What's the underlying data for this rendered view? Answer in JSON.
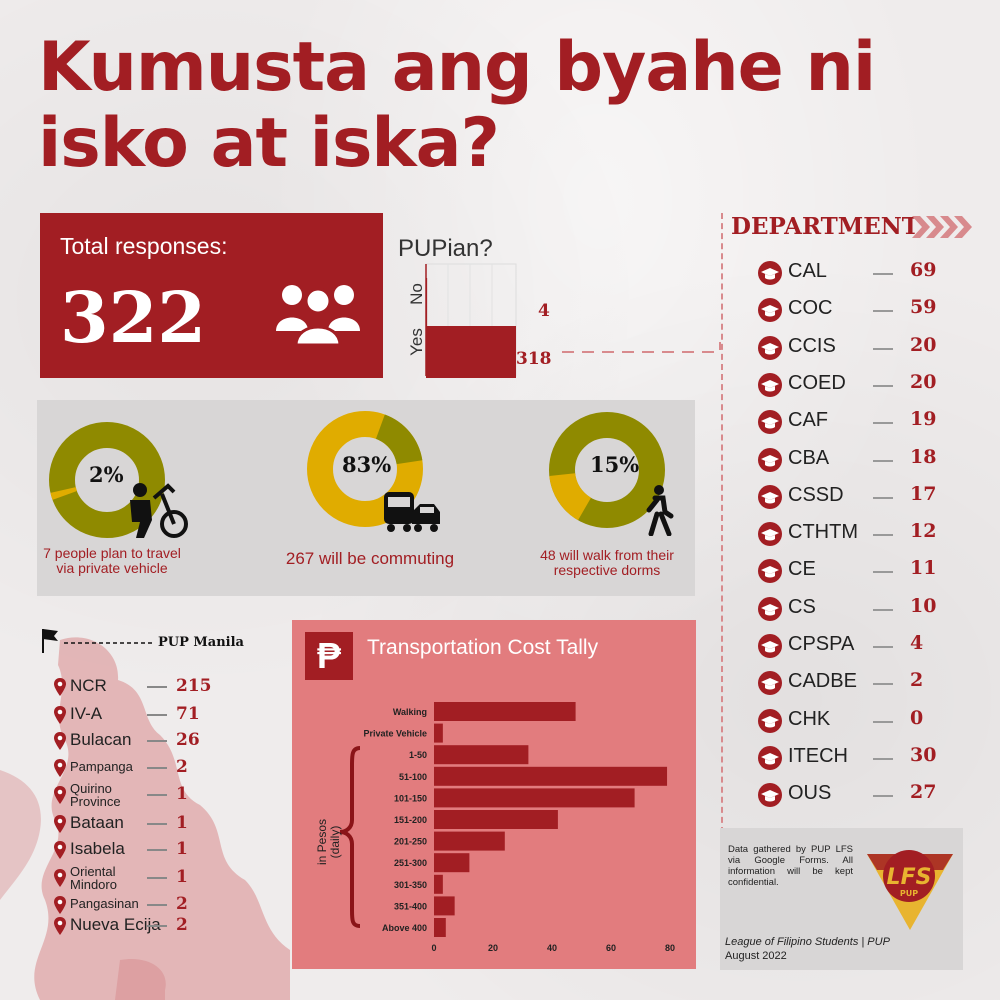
{
  "title_line1": "Kumusta ang byahe ni",
  "title_line2": "isko at iska?",
  "total": {
    "label": "Total responses:",
    "value": "322",
    "icon": "people-group-icon"
  },
  "pupian": {
    "title": "PUPian?",
    "chart_data": {
      "type": "bar",
      "orientation": "horizontal",
      "categories": [
        "No",
        "Yes"
      ],
      "values": [
        4,
        318
      ],
      "value_labels": [
        "4",
        "318"
      ]
    }
  },
  "modes": [
    {
      "pct_label": "2%",
      "pct": 2,
      "caption": "7 people plan to travel via private vehicle",
      "icon": "person-bicycle-icon"
    },
    {
      "pct_label": "83%",
      "pct": 83,
      "caption": "267 will be commuting",
      "icon": "bus-car-icon"
    },
    {
      "pct_label": "15%",
      "pct": 15,
      "caption": "48 will walk from their respective dorms",
      "icon": "walking-person-icon"
    }
  ],
  "department": {
    "header": "DEPARTMENT",
    "items": [
      {
        "name": "CAL",
        "count": "69"
      },
      {
        "name": "COC",
        "count": "59"
      },
      {
        "name": "CCIS",
        "count": "20"
      },
      {
        "name": "COED",
        "count": "20"
      },
      {
        "name": "CAF",
        "count": "19"
      },
      {
        "name": "CBA",
        "count": "18"
      },
      {
        "name": "CSSD",
        "count": "17"
      },
      {
        "name": "CTHTM",
        "count": "12"
      },
      {
        "name": "CE",
        "count": "11"
      },
      {
        "name": "CS",
        "count": "10"
      },
      {
        "name": "CPSPA",
        "count": "4"
      },
      {
        "name": "CADBE",
        "count": "2"
      },
      {
        "name": "CHK",
        "count": "0"
      },
      {
        "name": "ITECH",
        "count": "30"
      },
      {
        "name": "OUS",
        "count": "27"
      }
    ]
  },
  "regions": {
    "marker": "PUP Manila",
    "items": [
      {
        "name": "NCR",
        "count": "215"
      },
      {
        "name": "IV-A",
        "count": "71"
      },
      {
        "name": "Bulacan",
        "count": "26"
      },
      {
        "name": "Pampanga",
        "count": "2"
      },
      {
        "name": "Quirino Province",
        "count": "1"
      },
      {
        "name": "Bataan",
        "count": "1"
      },
      {
        "name": "Isabela",
        "count": "1"
      },
      {
        "name": "Oriental Mindoro",
        "count": "1"
      },
      {
        "name": "Pangasinan",
        "count": "2"
      },
      {
        "name": "Nueva Ecija",
        "count": "2"
      }
    ]
  },
  "cost": {
    "title": "Transportation Cost Tally",
    "peso_symbol": "₱",
    "bracket_label": "in Pesos (daily)",
    "chart_data": {
      "type": "bar",
      "orientation": "horizontal",
      "categories": [
        "Walking",
        "Private Vehicle",
        "1-50",
        "51-100",
        "101-150",
        "151-200",
        "201-250",
        "251-300",
        "301-350",
        "351-400",
        "Above 400"
      ],
      "values": [
        48,
        3,
        32,
        79,
        68,
        42,
        24,
        12,
        3,
        7,
        4
      ],
      "xticks": [
        0,
        20,
        40,
        60,
        80
      ],
      "xlim": [
        0,
        80
      ]
    }
  },
  "note": {
    "text": "Data gathered by PUP LFS via Google Forms. All information will be kept confidential.",
    "org": "League of Filipino Students | PUP",
    "date": "August 2022"
  },
  "colors": {
    "maroon": "#a21e23",
    "olive": "#8f8a00",
    "gold": "#e0ac00",
    "salmon": "#e27c7e",
    "bar": "#a21e23"
  }
}
